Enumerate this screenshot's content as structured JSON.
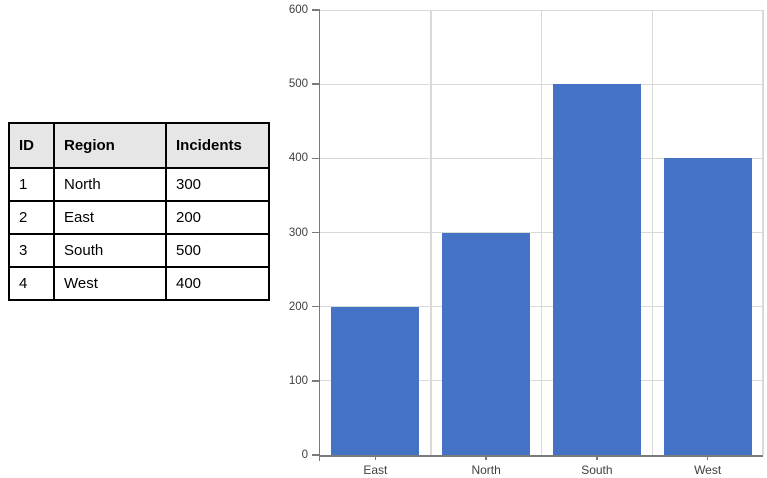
{
  "table": {
    "headers": [
      "ID",
      "Region",
      "Incidents"
    ],
    "rows": [
      [
        "1",
        "North",
        "300"
      ],
      [
        "2",
        "East",
        "200"
      ],
      [
        "3",
        "South",
        "500"
      ],
      [
        "4",
        "West",
        "400"
      ]
    ]
  },
  "chart_data": {
    "type": "bar",
    "categories": [
      "East",
      "North",
      "South",
      "West"
    ],
    "values": [
      200,
      300,
      500,
      400
    ],
    "title": "",
    "xlabel": "",
    "ylabel": "",
    "ylim": [
      0,
      600
    ],
    "yticks": [
      0,
      100,
      200,
      300,
      400,
      500,
      600
    ],
    "grid": true,
    "legend": false,
    "bar_color": "#4472C4",
    "gridline_color": "#D9D9D9",
    "axis_color": "#7A7A7A",
    "tick_label_color": "#404040"
  }
}
